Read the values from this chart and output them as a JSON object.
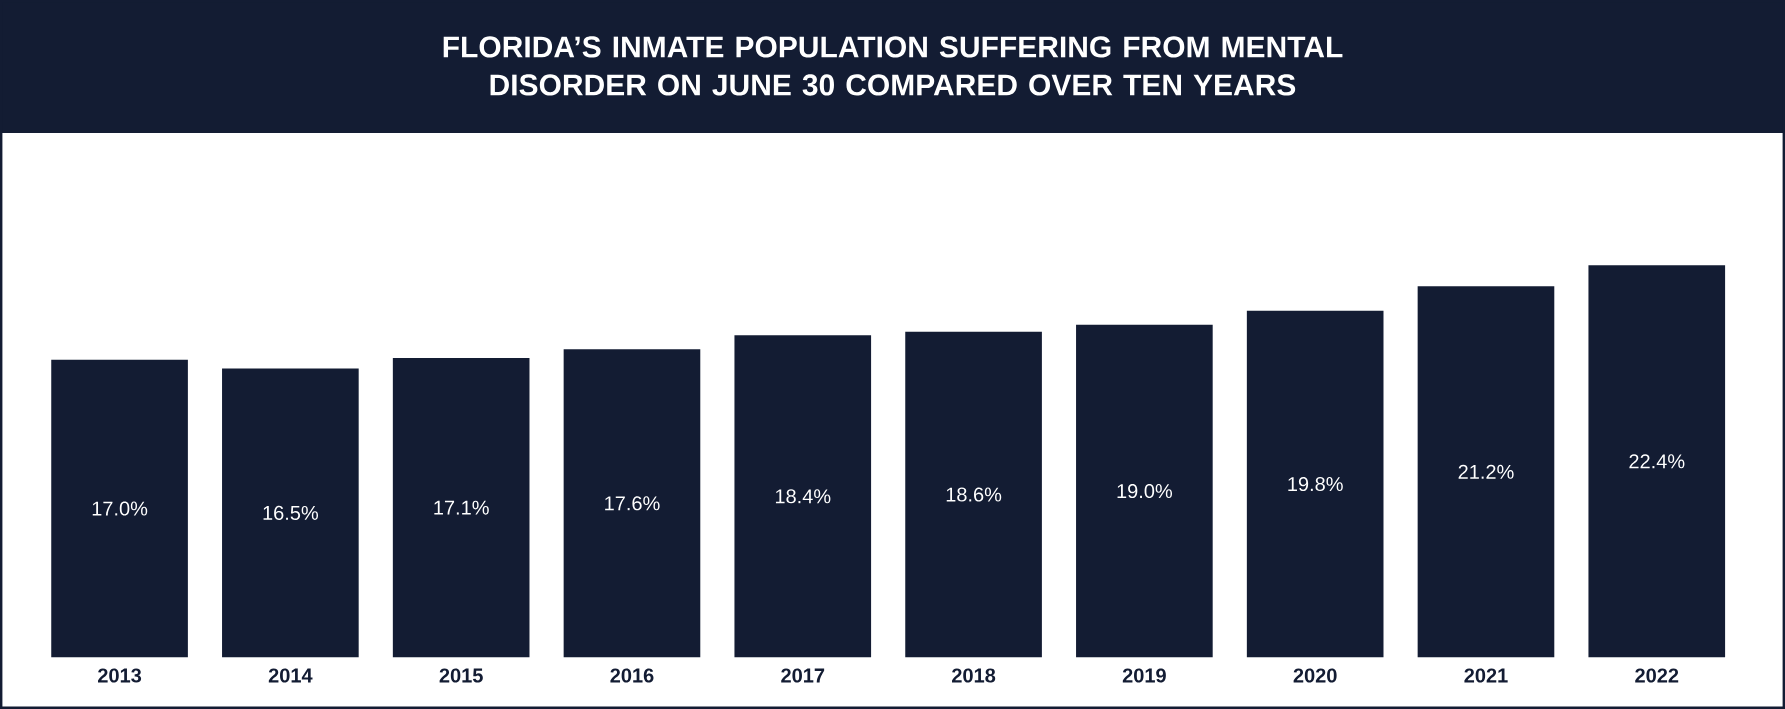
{
  "chart_data": {
    "type": "bar",
    "title": "FLORIDA’S INMATE POPULATION SUFFERING FROM MENTAL DISORDER ON JUNE 30 COMPARED OVER TEN YEARS",
    "categories": [
      "2013",
      "2014",
      "2015",
      "2016",
      "2017",
      "2018",
      "2019",
      "2020",
      "2021",
      "2022"
    ],
    "values": [
      17.0,
      16.5,
      17.1,
      17.6,
      18.4,
      18.6,
      19.0,
      19.8,
      21.2,
      22.4
    ],
    "value_labels": [
      "17.0%",
      "16.5%",
      "17.1%",
      "17.6%",
      "18.4%",
      "18.6%",
      "19.0%",
      "19.8%",
      "21.2%",
      "22.4%"
    ],
    "color": "#131c33"
  }
}
